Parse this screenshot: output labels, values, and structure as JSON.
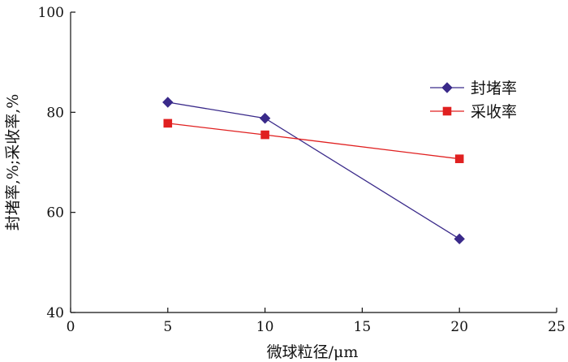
{
  "chart_data": {
    "type": "line",
    "xlabel": "微球粒径/μm",
    "ylabel": "封堵率,%;采收率,%",
    "xlim": [
      0,
      25
    ],
    "ylim": [
      40,
      100
    ],
    "xticks": [
      0,
      5,
      10,
      15,
      20,
      25
    ],
    "yticks": [
      40,
      60,
      80,
      100
    ],
    "grid": false,
    "legend_position": "top-right",
    "series": [
      {
        "name": "封堵率",
        "color": "#3a2a8a",
        "marker": "diamond",
        "x": [
          5,
          10,
          20
        ],
        "values": [
          82,
          78.8,
          54.7
        ]
      },
      {
        "name": "采收率",
        "color": "#e02020",
        "marker": "square",
        "x": [
          5,
          10,
          20
        ],
        "values": [
          77.8,
          75.5,
          70.7
        ]
      }
    ]
  }
}
